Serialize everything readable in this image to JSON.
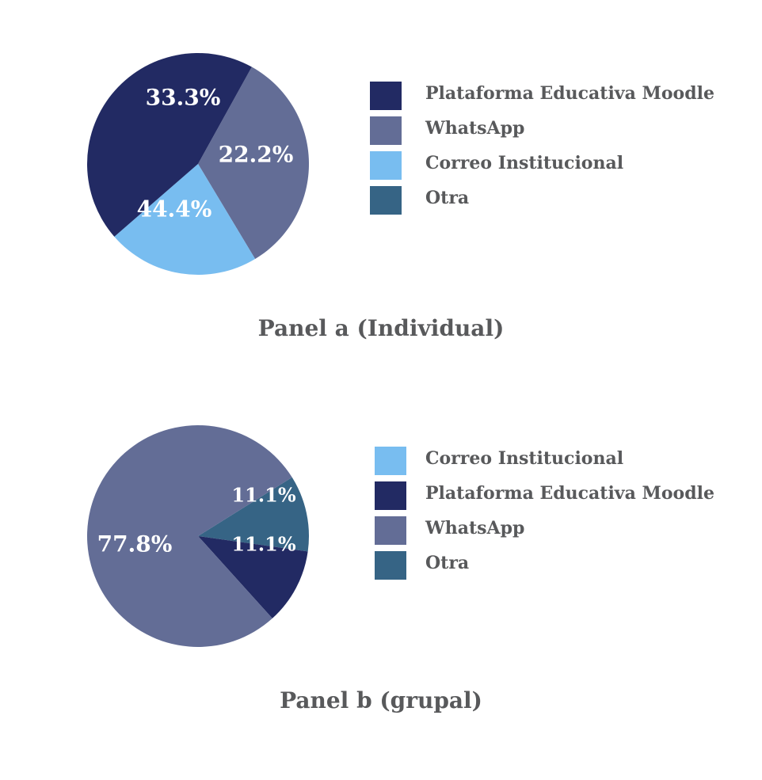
{
  "colors": {
    "Plataforma Educativa Moodle": "#222a63",
    "WhatsApp": "#636d96",
    "Correo Institucional": "#78bdf0",
    "Otra": "#366485"
  },
  "chart_data": [
    {
      "type": "pie",
      "title": "Panel a (Individual)",
      "slices": [
        {
          "name": "WhatsApp",
          "value": 33.3,
          "label": "33.3%"
        },
        {
          "name": "Correo Institucional",
          "value": 22.2,
          "label": "22.2%"
        },
        {
          "name": "Plataforma Educativa Moodle",
          "value": 44.4,
          "label": "44.4%"
        }
      ],
      "start_angle_deg": -61,
      "legend": [
        "Plataforma Educativa Moodle",
        "WhatsApp",
        "Correo Institucional",
        "Otra"
      ],
      "legend_position": "right"
    },
    {
      "type": "pie",
      "title": "Panel b (grupal)",
      "slices": [
        {
          "name": "Otra",
          "value": 11.1,
          "label": "11.1%"
        },
        {
          "name": "Plataforma Educativa Moodle",
          "value": 11.1,
          "label": "11.1%"
        },
        {
          "name": "WhatsApp",
          "value": 77.8,
          "label": "77.8%"
        }
      ],
      "start_angle_deg": -32,
      "legend": [
        "Correo Institucional",
        "Plataforma Educativa Moodle",
        "WhatsApp",
        "Otra"
      ],
      "legend_position": "right"
    }
  ]
}
